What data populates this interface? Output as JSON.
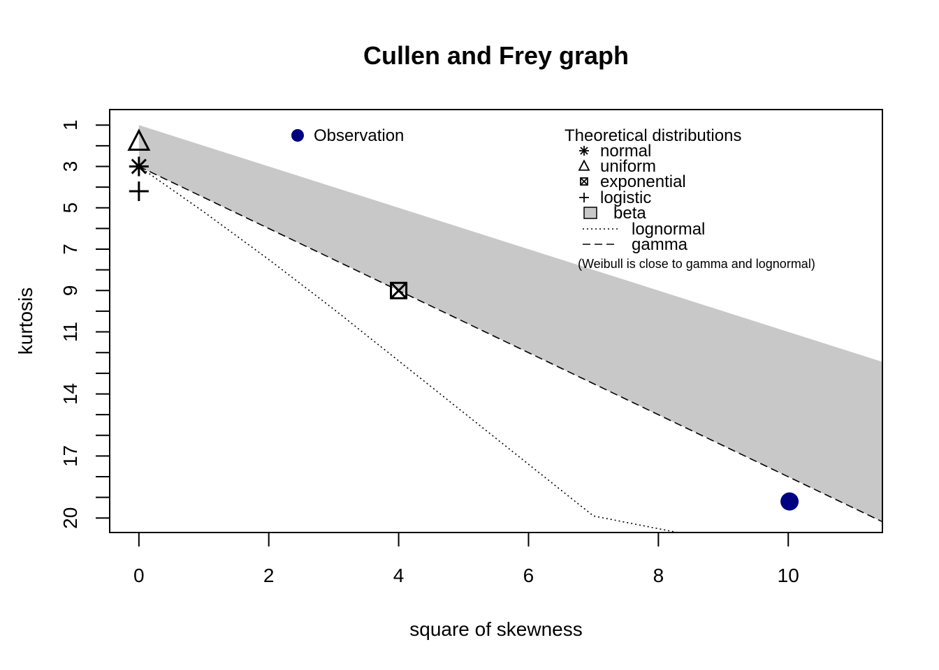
{
  "chart_data": {
    "type": "scatter",
    "title": "Cullen and Frey graph",
    "xlabel": "square of skewness",
    "ylabel": "kurtosis",
    "xlim": [
      -0.45,
      11.45
    ],
    "ylim": [
      20.7,
      0.25
    ],
    "y_reversed": true,
    "grid": false,
    "x_ticks": [
      0,
      2,
      4,
      6,
      8,
      10
    ],
    "y_ticks": [
      1,
      2,
      3,
      4,
      5,
      6,
      7,
      8,
      9,
      10,
      11,
      12,
      13,
      14,
      15,
      16,
      17,
      18,
      19,
      20
    ],
    "y_tick_labels": [
      {
        "value": 1,
        "label": "1"
      },
      {
        "value": 3,
        "label": "3"
      },
      {
        "value": 5,
        "label": "5"
      },
      {
        "value": 7,
        "label": "7"
      },
      {
        "value": 9,
        "label": "9"
      },
      {
        "value": 11,
        "label": "11"
      },
      {
        "value": 14,
        "label": "14"
      },
      {
        "value": 17,
        "label": "17"
      },
      {
        "value": 20,
        "label": "20"
      }
    ],
    "observation": {
      "x": 10.02,
      "y": 19.2,
      "color": "#000080"
    },
    "theoretical_points": [
      {
        "name": "normal",
        "x": 0,
        "y": 3,
        "symbol": "asterisk"
      },
      {
        "name": "uniform",
        "x": 0,
        "y": 1.8,
        "symbol": "triangle"
      },
      {
        "name": "exponential",
        "x": 4,
        "y": 9,
        "symbol": "boxed-x"
      },
      {
        "name": "logistic",
        "x": 0,
        "y": 4.2,
        "symbol": "plus"
      }
    ],
    "beta_region": {
      "color": "#c8c8c8",
      "upper": [
        [
          0,
          1
        ],
        [
          11.45,
          12.45
        ]
      ],
      "lower": [
        [
          0,
          3
        ],
        [
          11.45,
          20.18
        ]
      ]
    },
    "lognormal_curve": [
      [
        0,
        3
      ],
      [
        1,
        5.2
      ],
      [
        2,
        7.5
      ],
      [
        3,
        9.9
      ],
      [
        4,
        12.4
      ],
      [
        5,
        14.9
      ],
      [
        6,
        17.4
      ],
      [
        7,
        19.9
      ],
      [
        8.3,
        20.7
      ]
    ],
    "gamma_line": [
      [
        0,
        3
      ],
      [
        11.45,
        20.18
      ]
    ],
    "legend_observation": {
      "position": "top-center",
      "label": "Observation"
    },
    "legend_theoretical": {
      "position": "top-right",
      "title": "Theoretical distributions",
      "entries": [
        {
          "symbol": "asterisk",
          "label": "normal"
        },
        {
          "symbol": "triangle",
          "label": "uniform"
        },
        {
          "symbol": "boxed-x",
          "label": "exponential"
        },
        {
          "symbol": "plus",
          "label": "logistic"
        },
        {
          "symbol": "grey-box",
          "label": "beta"
        },
        {
          "symbol": "dotted-line",
          "label": "lognormal"
        },
        {
          "symbol": "dashed-line",
          "label": "gamma"
        }
      ],
      "note": "(Weibull is close to gamma and lognormal)"
    }
  }
}
